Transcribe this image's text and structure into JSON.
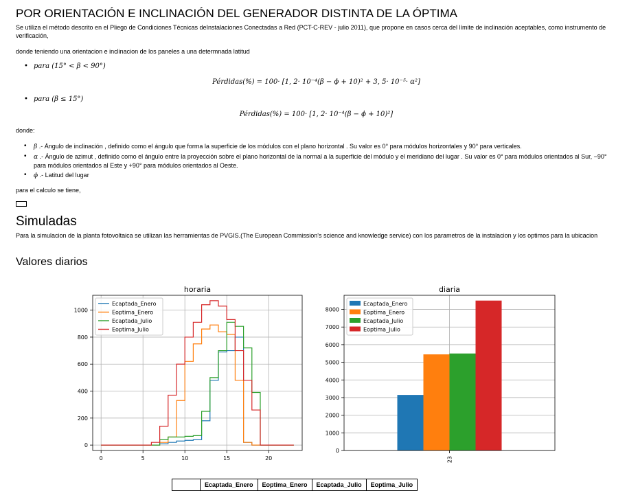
{
  "section1": {
    "title": "POR ORIENTACIÓN E INCLINACIÓN DEL GENERADOR DISTINTA DE LA ÓPTIMA",
    "intro": "Se utiliza el método descrito en el Pliego de Condiciones Técnicas deInstalaciones Conectadas a Red (PCT-C-REV - julio 2011), que propone en casos cerca del límite de inclinación aceptables, como instrumento de verificación,",
    "given": "donde teniendo una orientacion e inclinacion de los paneles a una determnada latitud",
    "case1": "para (15° < β < 90°)",
    "eq1": "Pérdidas(%) = 100· [1, 2· 10⁻⁴(β − ϕ + 10)² + 3, 5· 10⁻⁵· α²]",
    "case2": "para (β ≤ 15°)",
    "eq2": "Pérdidas(%) = 100· [1, 2· 10⁻⁴(β − ϕ + 10)²]",
    "where": "donde:",
    "defs": [
      {
        "sym": "β",
        "text": " .- Ángulo de inclinación , definido como el ángulo que forma la superficie de los módulos con el plano horizontal . Su valor es 0° para módulos horizontales y 90° para verticales."
      },
      {
        "sym": "α",
        "text": " .- Ángulo de azimut , definido como el ángulo entre la proyección sobre el plano horizontal de la normal a la superficie del módulo y el meridiano del lugar . Su valor es 0° para módulos orientados al Sur, −90° para módulos orientados al Este y +90° para módulos orientados al Oeste."
      },
      {
        "sym": "ϕ",
        "text": " .- Latitud del lugar"
      }
    ],
    "calc": "para el calculo se tiene,"
  },
  "section2": {
    "title": "Simuladas",
    "text": "Para la simulacion de la planta fotovoltaica se utilizan las herramientas de PVGIS.(The European Commission's science and knowledge service) con los parametros de la instalacion y los optimos para la ubicacion"
  },
  "section3": {
    "title": "Valores diarios"
  },
  "colors": {
    "blue": "#1f77b4",
    "orange": "#ff7f0e",
    "green": "#2ca02c",
    "red": "#d62728"
  },
  "chart_data": [
    {
      "type": "line",
      "title": "horaria",
      "x": [
        0,
        1,
        2,
        3,
        4,
        5,
        6,
        7,
        8,
        9,
        10,
        11,
        12,
        13,
        14,
        15,
        16,
        17,
        18,
        19,
        20,
        21,
        22,
        23
      ],
      "xticks": [
        0,
        5,
        10,
        15,
        20
      ],
      "yticks": [
        0,
        200,
        400,
        600,
        800,
        1000
      ],
      "xlim": [
        -1,
        24
      ],
      "ylim": [
        -40,
        1110
      ],
      "step": true,
      "series": [
        {
          "name": "Ecaptada_Enero",
          "color": "#1f77b4",
          "values": [
            0,
            0,
            0,
            0,
            0,
            0,
            0,
            10,
            20,
            30,
            35,
            40,
            180,
            480,
            690,
            700,
            800,
            20,
            0,
            0,
            0,
            0,
            0,
            0
          ]
        },
        {
          "name": "Eoptima_Enero",
          "color": "#ff7f0e",
          "values": [
            0,
            0,
            0,
            0,
            0,
            0,
            0,
            20,
            60,
            330,
            620,
            750,
            860,
            890,
            840,
            820,
            480,
            20,
            0,
            0,
            0,
            0,
            0,
            0
          ]
        },
        {
          "name": "Ecaptada_Julio",
          "color": "#2ca02c",
          "values": [
            0,
            0,
            0,
            0,
            0,
            0,
            0,
            40,
            60,
            60,
            65,
            70,
            250,
            500,
            700,
            910,
            880,
            720,
            390,
            0,
            0,
            0,
            0,
            0
          ]
        },
        {
          "name": "Eoptima_Julio",
          "color": "#d62728",
          "values": [
            0,
            0,
            0,
            0,
            0,
            0,
            20,
            140,
            370,
            600,
            800,
            910,
            1040,
            1070,
            1030,
            930,
            700,
            480,
            260,
            0,
            0,
            0,
            0,
            0
          ]
        }
      ]
    },
    {
      "type": "bar",
      "title": "diaria",
      "categories": [
        "23"
      ],
      "yticks": [
        0,
        1000,
        2000,
        3000,
        4000,
        5000,
        6000,
        7000,
        8000
      ],
      "ylim": [
        0,
        8800
      ],
      "series": [
        {
          "name": "Ecaptada_Enero",
          "color": "#1f77b4",
          "values": [
            3150
          ]
        },
        {
          "name": "Eoptima_Enero",
          "color": "#ff7f0e",
          "values": [
            5450
          ]
        },
        {
          "name": "Ecaptada_Julio",
          "color": "#2ca02c",
          "values": [
            5500
          ]
        },
        {
          "name": "Eoptima_Julio",
          "color": "#d62728",
          "values": [
            8500
          ]
        }
      ]
    }
  ],
  "table": {
    "headers": [
      "",
      "Ecaptada_Enero",
      "Eoptima_Enero",
      "Ecaptada_Julio",
      "Eoptima_Julio"
    ]
  }
}
